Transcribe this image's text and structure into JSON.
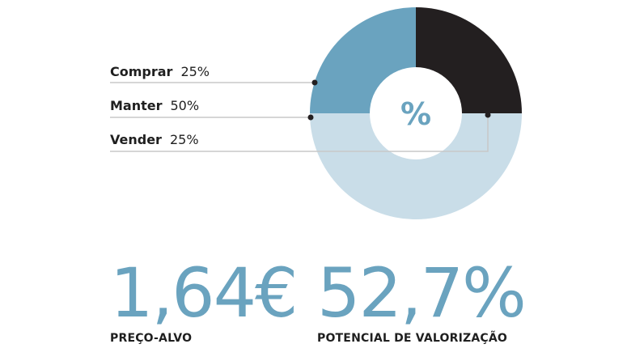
{
  "chart_data": {
    "type": "pie",
    "donut": true,
    "center_label": "%",
    "slices": [
      {
        "label": "Vender",
        "value": 25,
        "display": "25%",
        "color": "#231f20"
      },
      {
        "label": "Manter",
        "value": 50,
        "display": "50%",
        "color": "#c9dde8"
      },
      {
        "label": "Comprar",
        "value": 25,
        "display": "25%",
        "color": "#6aa3bf"
      }
    ],
    "legend_order": [
      "Comprar",
      "Manter",
      "Vender"
    ]
  },
  "stats": {
    "target_price": {
      "value": "1,64€",
      "label": "PREÇO-ALVO"
    },
    "upside": {
      "value": "52,7%",
      "label": "POTENCIAL DE VALORIZAÇÃO"
    }
  },
  "colors": {
    "accent": "#6aa3bf",
    "light": "#c9dde8",
    "dark": "#231f20",
    "text": "#1f1f1f",
    "leader": "#c8c8c8"
  }
}
